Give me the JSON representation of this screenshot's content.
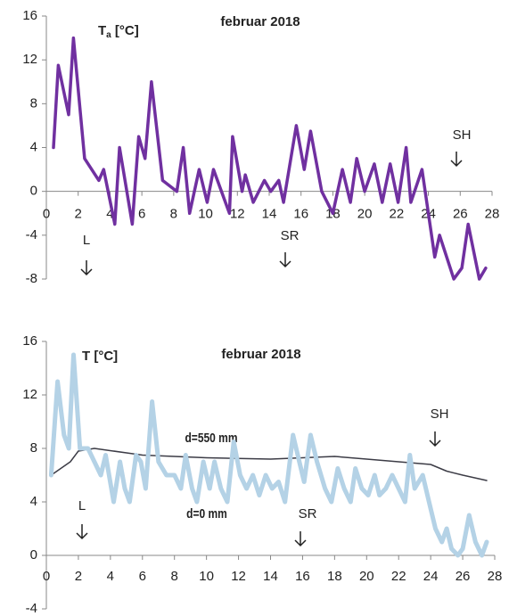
{
  "chart_data": [
    {
      "type": "line",
      "title": "februar 2018",
      "ylabel": "T",
      "ylabel_sub": "a",
      "ylabel_unit": " [°C]",
      "xlim": [
        0,
        28
      ],
      "xticks": [
        0,
        2,
        4,
        6,
        8,
        10,
        12,
        14,
        16,
        18,
        20,
        22,
        24,
        26,
        28
      ],
      "ylim": [
        -8,
        16
      ],
      "yticks": [
        -8,
        -4,
        0,
        4,
        8,
        12,
        16
      ],
      "annotations": [
        "L",
        "SR",
        "SH"
      ],
      "series": [
        {
          "color": "#7030a0",
          "x": [
            0.45,
            0.75,
            1.4,
            1.7,
            2.4,
            3.3,
            3.6,
            4.3,
            4.6,
            5.4,
            5.8,
            6.2,
            6.6,
            7.3,
            8.2,
            8.6,
            9.0,
            9.6,
            10.1,
            10.5,
            11.5,
            11.7,
            12.3,
            12.5,
            13.0,
            13.7,
            14.1,
            14.6,
            14.9,
            15.7,
            16.2,
            16.6,
            17.3,
            18.0,
            18.6,
            19.1,
            19.5,
            20.0,
            20.6,
            21.1,
            21.6,
            22.1,
            22.6,
            22.9,
            23.6,
            24.4,
            24.7,
            25.6,
            26.1,
            26.5,
            27.2,
            27.6
          ],
          "values": [
            4,
            11.5,
            7,
            14,
            3,
            1,
            2,
            -3,
            4,
            -3,
            5,
            3,
            10,
            1,
            0,
            4,
            -2,
            2,
            -1,
            2,
            -2,
            5,
            0,
            1.5,
            -1,
            1,
            0,
            1,
            -1,
            6,
            2,
            5.5,
            0,
            -2,
            2,
            -1,
            3,
            0,
            2.5,
            -1,
            2.5,
            -1,
            4,
            -1,
            2,
            -6,
            -4,
            -8,
            -7,
            -3,
            -8,
            -7
          ]
        }
      ]
    },
    {
      "type": "line",
      "title": "februar 2018",
      "ylabel": "T [°C]",
      "xlim": [
        0,
        28
      ],
      "xticks": [
        0,
        2,
        4,
        6,
        8,
        10,
        12,
        14,
        16,
        18,
        20,
        22,
        24,
        26,
        28
      ],
      "ylim": [
        -4,
        16
      ],
      "yticks": [
        -4,
        0,
        4,
        8,
        12,
        16
      ],
      "annotations": [
        "d=550 mm",
        "d=0 mm",
        "L",
        "SR",
        "SH"
      ],
      "series": [
        {
          "name": "d=550 mm",
          "color": "#3c3c46",
          "x": [
            0.3,
            1.5,
            2.0,
            3.0,
            6.0,
            10.0,
            14.0,
            16.0,
            18.0,
            20.0,
            22.0,
            24.0,
            25.0,
            26.0,
            27.5
          ],
          "values": [
            6,
            7,
            7.8,
            8,
            7.5,
            7.3,
            7.2,
            7.3,
            7.4,
            7.2,
            7.0,
            6.8,
            6.3,
            6.0,
            5.6
          ]
        },
        {
          "name": "d=0 mm",
          "color": "#b4d2e6",
          "x": [
            0.3,
            0.7,
            1.1,
            1.4,
            1.7,
            2.1,
            2.6,
            3.0,
            3.4,
            3.7,
            4.2,
            4.6,
            4.9,
            5.2,
            5.6,
            5.9,
            6.2,
            6.6,
            7.0,
            7.5,
            8.0,
            8.4,
            8.7,
            9.1,
            9.4,
            9.8,
            10.2,
            10.5,
            10.9,
            11.3,
            11.7,
            12.1,
            12.5,
            12.9,
            13.3,
            13.7,
            14.1,
            14.5,
            14.9,
            15.4,
            15.8,
            16.1,
            16.5,
            16.9,
            17.4,
            17.8,
            18.2,
            18.6,
            19.0,
            19.3,
            19.7,
            20.1,
            20.5,
            20.8,
            21.2,
            21.6,
            22.0,
            22.4,
            22.7,
            23.0,
            23.5,
            23.9,
            24.3,
            24.7,
            25.0,
            25.3,
            25.7,
            26.0,
            26.4,
            26.8,
            27.2,
            27.5
          ],
          "values": [
            6,
            13,
            9,
            8,
            15,
            8,
            8,
            7,
            6,
            7.5,
            4,
            7,
            5,
            4,
            7.5,
            7,
            5,
            11.5,
            7,
            6,
            6,
            5,
            7.5,
            5,
            4,
            7,
            5,
            7,
            5,
            4,
            8.5,
            6,
            5,
            6,
            4.5,
            6,
            5,
            5.5,
            4,
            9,
            7,
            5.5,
            9,
            7,
            5,
            4,
            6.5,
            5,
            4,
            6.5,
            5,
            4.5,
            6,
            4.5,
            5,
            6,
            5,
            4,
            7.5,
            5,
            6,
            4,
            2,
            1,
            2,
            0.5,
            0,
            0.5,
            3,
            1,
            0,
            1
          ]
        }
      ]
    }
  ]
}
